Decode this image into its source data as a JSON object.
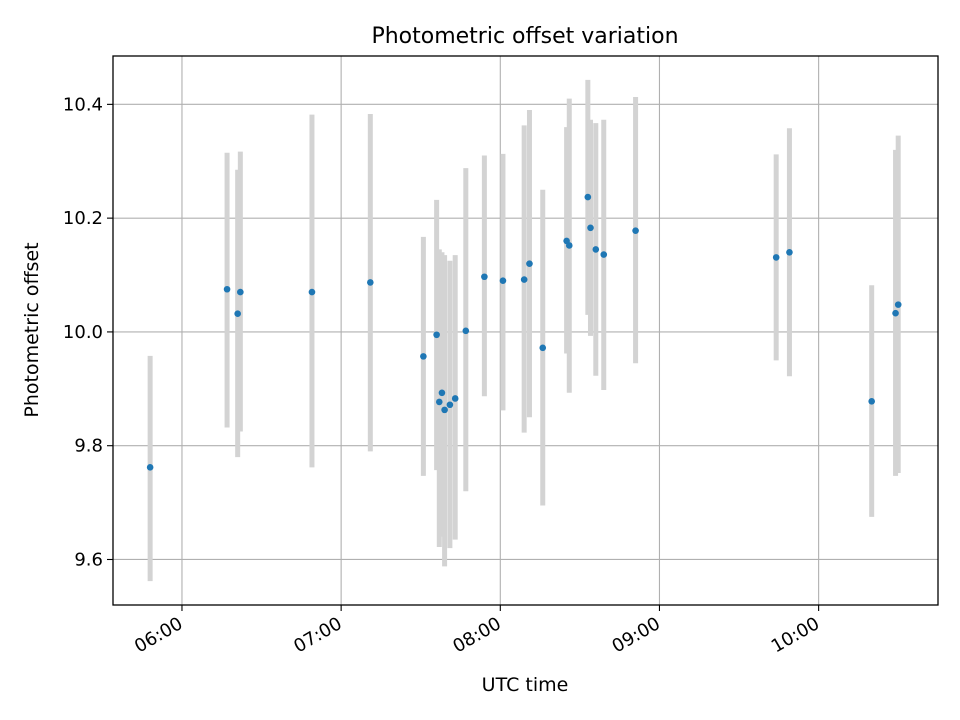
{
  "chart_data": {
    "type": "scatter",
    "title": "Photometric offset variation",
    "xlabel": "UTC time",
    "ylabel": "Photometric offset",
    "x_ticks": [
      "06:00",
      "07:00",
      "08:00",
      "09:00",
      "10:00"
    ],
    "y_ticks": [
      "9.6",
      "9.8",
      "10.0",
      "10.2",
      "10.4"
    ],
    "xlim": [
      "05:34",
      "10:45"
    ],
    "ylim": [
      9.52,
      10.485
    ],
    "grid": true,
    "error_bar_color": "#d3d3d3",
    "point_color": "#1f77b4",
    "points": [
      {
        "x": "05:48",
        "y": 9.762,
        "ylo": 9.562,
        "yhi": 9.958
      },
      {
        "x": "06:17",
        "y": 10.075,
        "ylo": 9.832,
        "yhi": 10.315
      },
      {
        "x": "06:21",
        "y": 10.032,
        "ylo": 9.78,
        "yhi": 10.285
      },
      {
        "x": "06:22",
        "y": 10.07,
        "ylo": 9.825,
        "yhi": 10.317
      },
      {
        "x": "06:49",
        "y": 10.07,
        "ylo": 9.762,
        "yhi": 10.382
      },
      {
        "x": "07:11",
        "y": 10.087,
        "ylo": 9.79,
        "yhi": 10.383
      },
      {
        "x": "07:31",
        "y": 9.957,
        "ylo": 9.747,
        "yhi": 10.167
      },
      {
        "x": "07:36",
        "y": 9.995,
        "ylo": 9.757,
        "yhi": 10.232
      },
      {
        "x": "07:37",
        "y": 9.877,
        "ylo": 9.622,
        "yhi": 10.145
      },
      {
        "x": "07:38",
        "y": 9.893,
        "ylo": 9.64,
        "yhi": 10.14
      },
      {
        "x": "07:39",
        "y": 9.863,
        "ylo": 9.588,
        "yhi": 10.135
      },
      {
        "x": "07:41",
        "y": 9.872,
        "ylo": 9.62,
        "yhi": 10.125
      },
      {
        "x": "07:43",
        "y": 9.883,
        "ylo": 9.635,
        "yhi": 10.135
      },
      {
        "x": "07:47",
        "y": 10.002,
        "ylo": 9.72,
        "yhi": 10.288
      },
      {
        "x": "07:54",
        "y": 10.097,
        "ylo": 9.887,
        "yhi": 10.31
      },
      {
        "x": "08:01",
        "y": 10.09,
        "ylo": 9.862,
        "yhi": 10.313
      },
      {
        "x": "08:09",
        "y": 10.092,
        "ylo": 9.823,
        "yhi": 10.363
      },
      {
        "x": "08:11",
        "y": 10.12,
        "ylo": 9.85,
        "yhi": 10.39
      },
      {
        "x": "08:16",
        "y": 9.972,
        "ylo": 9.695,
        "yhi": 10.25
      },
      {
        "x": "08:25",
        "y": 10.16,
        "ylo": 9.962,
        "yhi": 10.36
      },
      {
        "x": "08:26",
        "y": 10.152,
        "ylo": 9.893,
        "yhi": 10.41
      },
      {
        "x": "08:33",
        "y": 10.237,
        "ylo": 10.03,
        "yhi": 10.443
      },
      {
        "x": "08:34",
        "y": 10.183,
        "ylo": 9.993,
        "yhi": 10.373
      },
      {
        "x": "08:36",
        "y": 10.145,
        "ylo": 9.923,
        "yhi": 10.367
      },
      {
        "x": "08:39",
        "y": 10.136,
        "ylo": 9.898,
        "yhi": 10.373
      },
      {
        "x": "08:51",
        "y": 10.178,
        "ylo": 9.945,
        "yhi": 10.413
      },
      {
        "x": "09:44",
        "y": 10.131,
        "ylo": 9.95,
        "yhi": 10.312
      },
      {
        "x": "09:49",
        "y": 10.14,
        "ylo": 9.922,
        "yhi": 10.358
      },
      {
        "x": "10:20",
        "y": 9.878,
        "ylo": 9.675,
        "yhi": 10.082
      },
      {
        "x": "10:29",
        "y": 10.033,
        "ylo": 9.747,
        "yhi": 10.32
      },
      {
        "x": "10:30",
        "y": 10.048,
        "ylo": 9.752,
        "yhi": 10.345
      }
    ]
  }
}
